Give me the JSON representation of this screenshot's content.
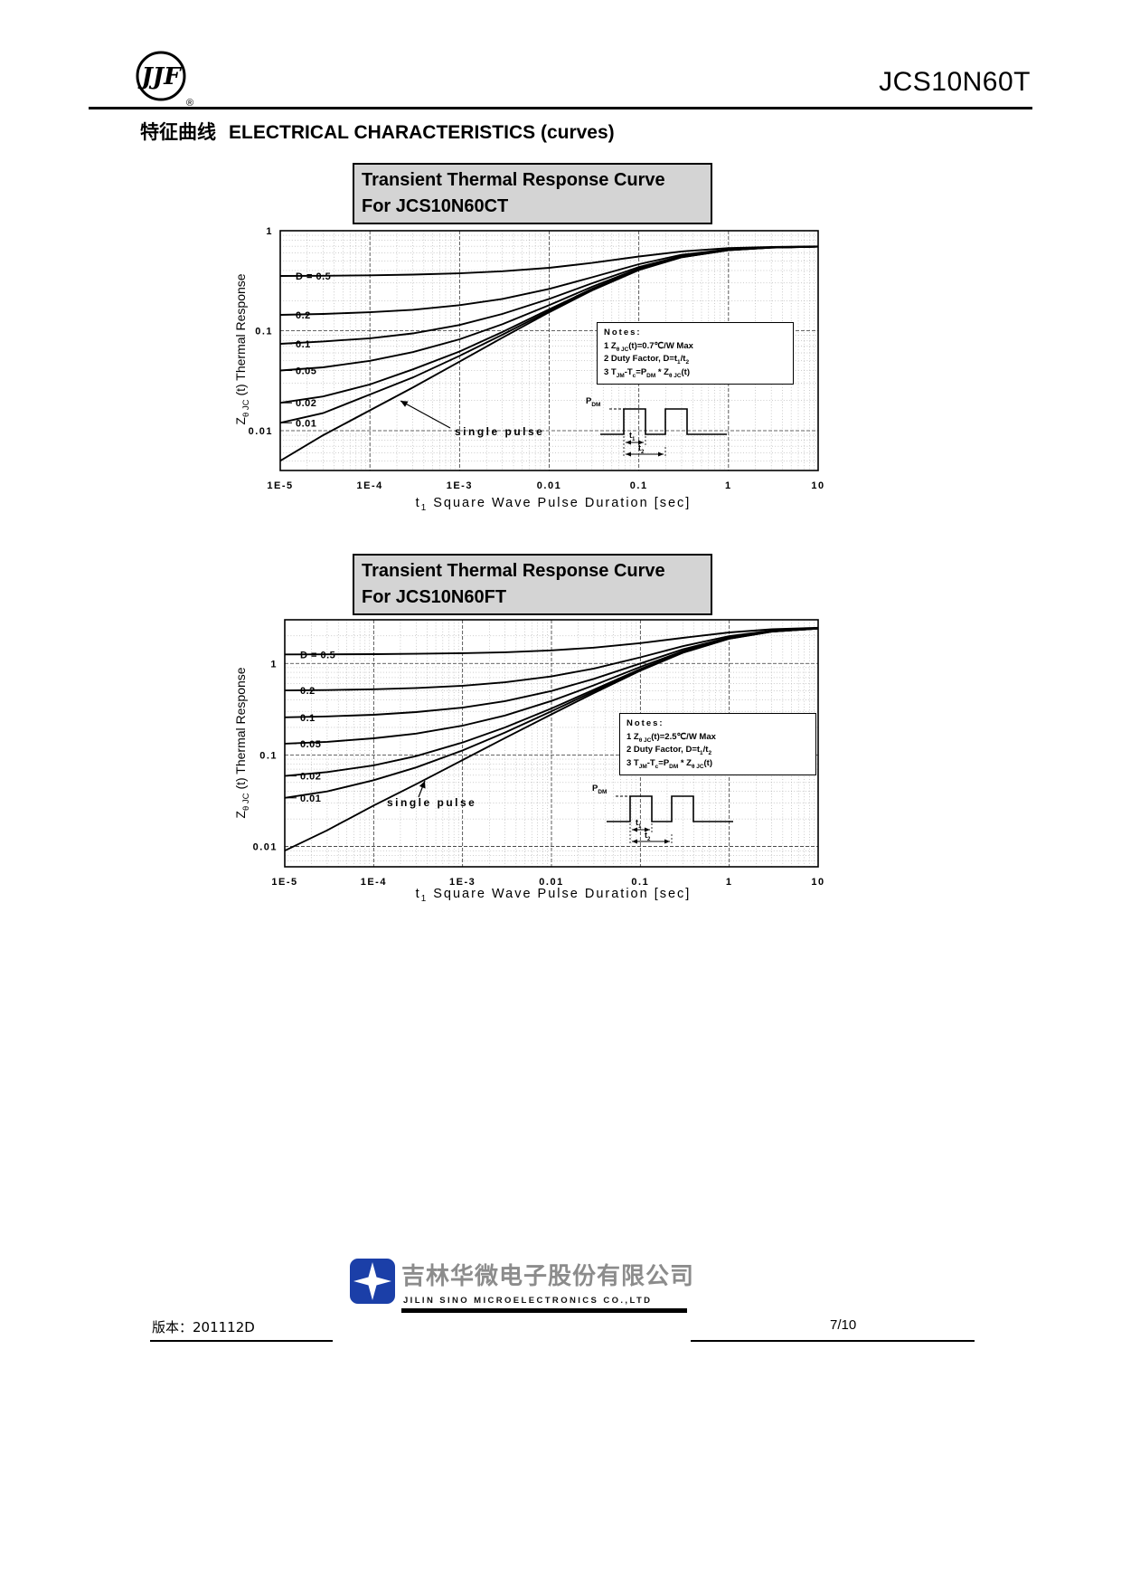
{
  "header": {
    "logo_text": "JJF",
    "registered": "®",
    "product": "JCS10N60T",
    "section_cn": "特征曲线",
    "section_en": "ELECTRICAL CHARACTERISTICS (curves)"
  },
  "footer": {
    "company_cn": "吉林华微电子股份有限公司",
    "company_en": "JILIN  SINO  MICROELECTRONICS  CO.,LTD",
    "version": "版本：201112D",
    "page": "7/10"
  },
  "chart_blocks": [
    {
      "title_line1": "Transient Thermal Response Curve",
      "title_line2": "For JCS10N60CT",
      "ylabel": "Z~θ JC~ (t) Thermal Response",
      "xlabel": "t~1~ Square Wave Pulse Duration [sec]",
      "notes_title": "Notes:",
      "notes": [
        "1 Z~θ JC~(t)=0.7℃/W Max",
        "2 Duty Factor, D=t~1~/t~2~",
        "3 T~JM~-T~c~=P~DM~ * Z~θ JC~(t)"
      ],
      "pulse_p": "P~DM~",
      "pulse_t1": "t~1~",
      "pulse_t2": "t~2~",
      "single_pulse": "single pulse"
    },
    {
      "title_line1": "Transient Thermal Response Curve",
      "title_line2": "For JCS10N60FT",
      "ylabel": "Z~θ JC~ (t) Thermal Response",
      "xlabel": "t~1~ Square Wave Pulse Duration [sec]",
      "notes_title": "Notes:",
      "notes": [
        "1 Z~θ JC~(t)=2.5℃/W Max",
        "2 Duty Factor, D=t~1~/t~2~",
        "3 T~JM~-T~c~=P~DM~ * Z~θ JC~(t)"
      ],
      "pulse_p": "P~DM~",
      "pulse_t1": "t~1~",
      "pulse_t2": "t~2~",
      "single_pulse": "single pulse"
    }
  ],
  "chart_data": [
    {
      "type": "line",
      "title": "Transient Thermal Response Curve For JCS10N60CT",
      "xlabel": "t1 Square Wave Pulse Duration [sec]",
      "ylabel": "Zθ JC(t) Thermal Response",
      "x_scale": "log",
      "y_scale": "log",
      "xlim": [
        1e-05,
        10
      ],
      "ylim": [
        0.004,
        1
      ],
      "x_ticks": [
        "1E-5",
        "1E-4",
        "1E-3",
        "0.01",
        "0.1",
        "1",
        "10"
      ],
      "x_tick_values": [
        1e-05,
        0.0001,
        0.001,
        0.01,
        0.1,
        1,
        10
      ],
      "y_ticks": [
        "1",
        "0.1",
        "0.01"
      ],
      "y_tick_values": [
        1,
        0.1,
        0.01
      ],
      "zmax_note": "ZθJC(t) = 0.7 C/W Max",
      "x": [
        1e-05,
        3e-05,
        0.0001,
        0.0003,
        0.001,
        0.003,
        0.01,
        0.03,
        0.1,
        0.3,
        1,
        3,
        10
      ],
      "series": [
        {
          "name": "D = 0.5",
          "values": [
            0.353,
            0.354,
            0.358,
            0.364,
            0.375,
            0.393,
            0.426,
            0.476,
            0.552,
            0.621,
            0.67,
            0.689,
            0.697
          ]
        },
        {
          "name": "0.2",
          "values": [
            0.144,
            0.147,
            0.153,
            0.162,
            0.18,
            0.208,
            0.262,
            0.342,
            0.463,
            0.574,
            0.651,
            0.682,
            0.694
          ]
        },
        {
          "name": "0.1",
          "values": [
            0.074,
            0.078,
            0.084,
            0.094,
            0.114,
            0.147,
            0.208,
            0.298,
            0.434,
            0.558,
            0.645,
            0.68,
            0.694
          ]
        },
        {
          "name": "0.05",
          "values": [
            0.04,
            0.043,
            0.05,
            0.061,
            0.082,
            0.116,
            0.18,
            0.275,
            0.419,
            0.55,
            0.642,
            0.679,
            0.693
          ]
        },
        {
          "name": "0.02",
          "values": [
            0.019,
            0.022,
            0.029,
            0.041,
            0.062,
            0.097,
            0.164,
            0.262,
            0.41,
            0.545,
            0.64,
            0.678,
            0.693
          ]
        },
        {
          "name": "0.01",
          "values": [
            0.012,
            0.015,
            0.023,
            0.034,
            0.056,
            0.091,
            0.158,
            0.257,
            0.407,
            0.544,
            0.64,
            0.678,
            0.693
          ]
        },
        {
          "name": "single pulse",
          "values": [
            0.005,
            0.009,
            0.016,
            0.027,
            0.049,
            0.085,
            0.153,
            0.253,
            0.404,
            0.542,
            0.639,
            0.678,
            0.693
          ]
        }
      ]
    },
    {
      "type": "line",
      "title": "Transient Thermal Response Curve For JCS10N60FT",
      "xlabel": "t1 Square Wave Pulse Duration [sec]",
      "ylabel": "Zθ JC(t) Thermal Response",
      "x_scale": "log",
      "y_scale": "log",
      "xlim": [
        1e-05,
        10
      ],
      "ylim": [
        0.006,
        3
      ],
      "x_ticks": [
        "1E-5",
        "1E-4",
        "1E-3",
        "0.01",
        "0.1",
        "1",
        "10"
      ],
      "x_tick_values": [
        1e-05,
        0.0001,
        0.001,
        0.01,
        0.1,
        1,
        10
      ],
      "y_ticks": [
        "1",
        "0.1",
        "0.01"
      ],
      "y_tick_values": [
        1,
        0.1,
        0.01
      ],
      "zmax_note": "ZθJC(t) = 2.5 C/W Max",
      "x": [
        1e-05,
        3e-05,
        0.0001,
        0.0003,
        0.001,
        0.003,
        0.01,
        0.03,
        0.1,
        0.3,
        1,
        3,
        10
      ],
      "series": [
        {
          "name": "D = 0.5",
          "values": [
            1.254,
            1.258,
            1.264,
            1.274,
            1.294,
            1.326,
            1.389,
            1.488,
            1.667,
            1.903,
            2.182,
            2.361,
            2.453
          ]
        },
        {
          "name": "0.2",
          "values": [
            0.507,
            0.512,
            0.522,
            0.539,
            0.571,
            0.622,
            0.722,
            0.88,
            1.167,
            1.544,
            1.991,
            2.277,
            2.425
          ]
        },
        {
          "name": "0.1",
          "values": [
            0.258,
            0.264,
            0.275,
            0.294,
            0.329,
            0.388,
            0.5,
            0.678,
            1.0,
            1.425,
            1.927,
            2.249,
            2.415
          ]
        },
        {
          "name": "0.05",
          "values": [
            0.133,
            0.139,
            0.152,
            0.171,
            0.209,
            0.27,
            0.389,
            0.577,
            0.917,
            1.365,
            1.895,
            2.235,
            2.41
          ]
        },
        {
          "name": "0.02",
          "values": [
            0.059,
            0.065,
            0.077,
            0.097,
            0.137,
            0.2,
            0.322,
            0.516,
            0.867,
            1.329,
            1.876,
            2.227,
            2.408
          ]
        },
        {
          "name": "0.01",
          "values": [
            0.034,
            0.04,
            0.053,
            0.073,
            0.112,
            0.176,
            0.3,
            0.496,
            0.85,
            1.318,
            1.87,
            2.224,
            2.407
          ]
        },
        {
          "name": "single pulse",
          "values": [
            0.009,
            0.015,
            0.028,
            0.048,
            0.088,
            0.153,
            0.278,
            0.475,
            0.833,
            1.306,
            1.863,
            2.221,
            2.406
          ]
        }
      ]
    }
  ]
}
